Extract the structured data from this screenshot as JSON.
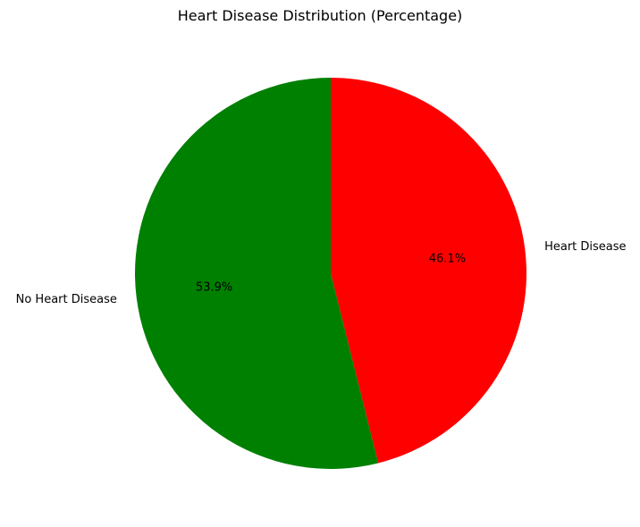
{
  "chart_data": {
    "type": "pie",
    "title": "Heart Disease Distribution (Percentage)",
    "categories": [
      "Heart Disease",
      "No Heart Disease"
    ],
    "values": [
      46.1,
      53.9
    ],
    "percent_labels": [
      "46.1%",
      "53.9%"
    ],
    "colors": [
      "#ff0000",
      "#008000"
    ],
    "start_angle_deg": 90,
    "direction": "clockwise",
    "legend": "none"
  }
}
